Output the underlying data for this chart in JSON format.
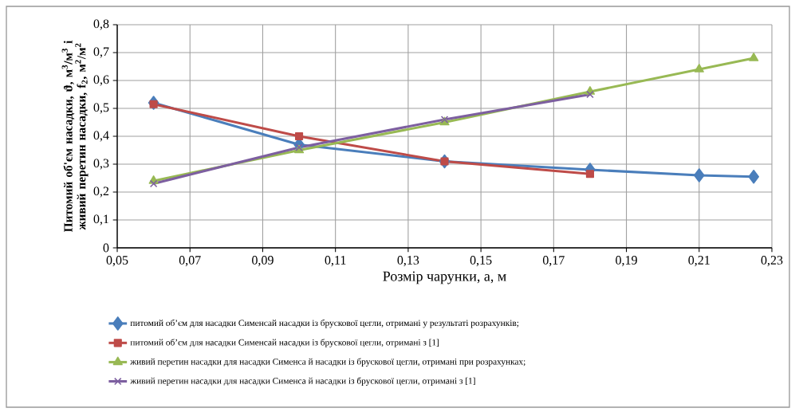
{
  "chart_data": {
    "type": "line",
    "xlabel": "Розмір чарунки, a, м",
    "ylabel": "Питомий об'єм насадки, ϑ, м$^{3}$/м$^{3}$ і живий перетин насадки, f$_{2}$, м$^{2}$/м$^{2}$",
    "xlim": [
      0.05,
      0.23
    ],
    "xticks": [
      {
        "value": 0.05,
        "label": "0,05"
      },
      {
        "value": 0.07,
        "label": "0,07"
      },
      {
        "value": 0.09,
        "label": "0,09"
      },
      {
        "value": 0.11,
        "label": "0,11"
      },
      {
        "value": 0.13,
        "label": "0,13"
      },
      {
        "value": 0.15,
        "label": "0,15"
      },
      {
        "value": 0.17,
        "label": "0,17"
      },
      {
        "value": 0.19,
        "label": "0,19"
      },
      {
        "value": 0.21,
        "label": "0,21"
      },
      {
        "value": 0.23,
        "label": "0,23"
      }
    ],
    "ylim": [
      0,
      0.8
    ],
    "yticks": [
      0,
      {
        "value": 0.1,
        "label": "0,1"
      },
      {
        "value": 0.2,
        "label": "0,2"
      },
      {
        "value": 0.3,
        "label": "0,3"
      },
      {
        "value": 0.4,
        "label": "0,4"
      },
      {
        "value": 0.5,
        "label": "0,5"
      },
      {
        "value": 0.6,
        "label": "0,6"
      },
      {
        "value": 0.7,
        "label": "0,7"
      },
      {
        "value": 0.8,
        "label": "0,8"
      }
    ],
    "grid": true,
    "legend": "bottom",
    "line_style": "solid",
    "series": [
      {
        "name": "питомий об’єм для насадки Сименсай насадки із брускової цегли, отримані у результаті розрахунків;",
        "color": "#4a7ebb",
        "marker": "diamond",
        "x": [
          0.06,
          0.1,
          0.14,
          0.18,
          0.21,
          0.225
        ],
        "values": [
          0.52,
          0.37,
          0.31,
          0.28,
          0.26,
          0.255
        ]
      },
      {
        "name": "питомий об’єм для насадки Сименсай насадки із брускової цегли, отримані з [1]",
        "color": "#be4b48",
        "marker": "square",
        "x": [
          0.06,
          0.1,
          0.14,
          0.18
        ],
        "values": [
          0.515,
          0.4,
          0.31,
          0.265
        ]
      },
      {
        "name": "живий перетин насадки  для насадки Сименса й насадки із брускової цегли, отримані при розрахунках;",
        "color": "#98b954",
        "marker": "triangle",
        "x": [
          0.06,
          0.1,
          0.14,
          0.18,
          0.21,
          0.225
        ],
        "values": [
          0.24,
          0.35,
          0.45,
          0.56,
          0.64,
          0.68
        ]
      },
      {
        "name": "живий перетин насадки  для насадки Сименса й насадки із брускової цегли, отримані з [1]",
        "color": "#7d5fa0",
        "marker": "cross",
        "x": [
          0.06,
          0.1,
          0.14,
          0.18
        ],
        "values": [
          0.23,
          0.36,
          0.46,
          0.55
        ]
      }
    ]
  }
}
